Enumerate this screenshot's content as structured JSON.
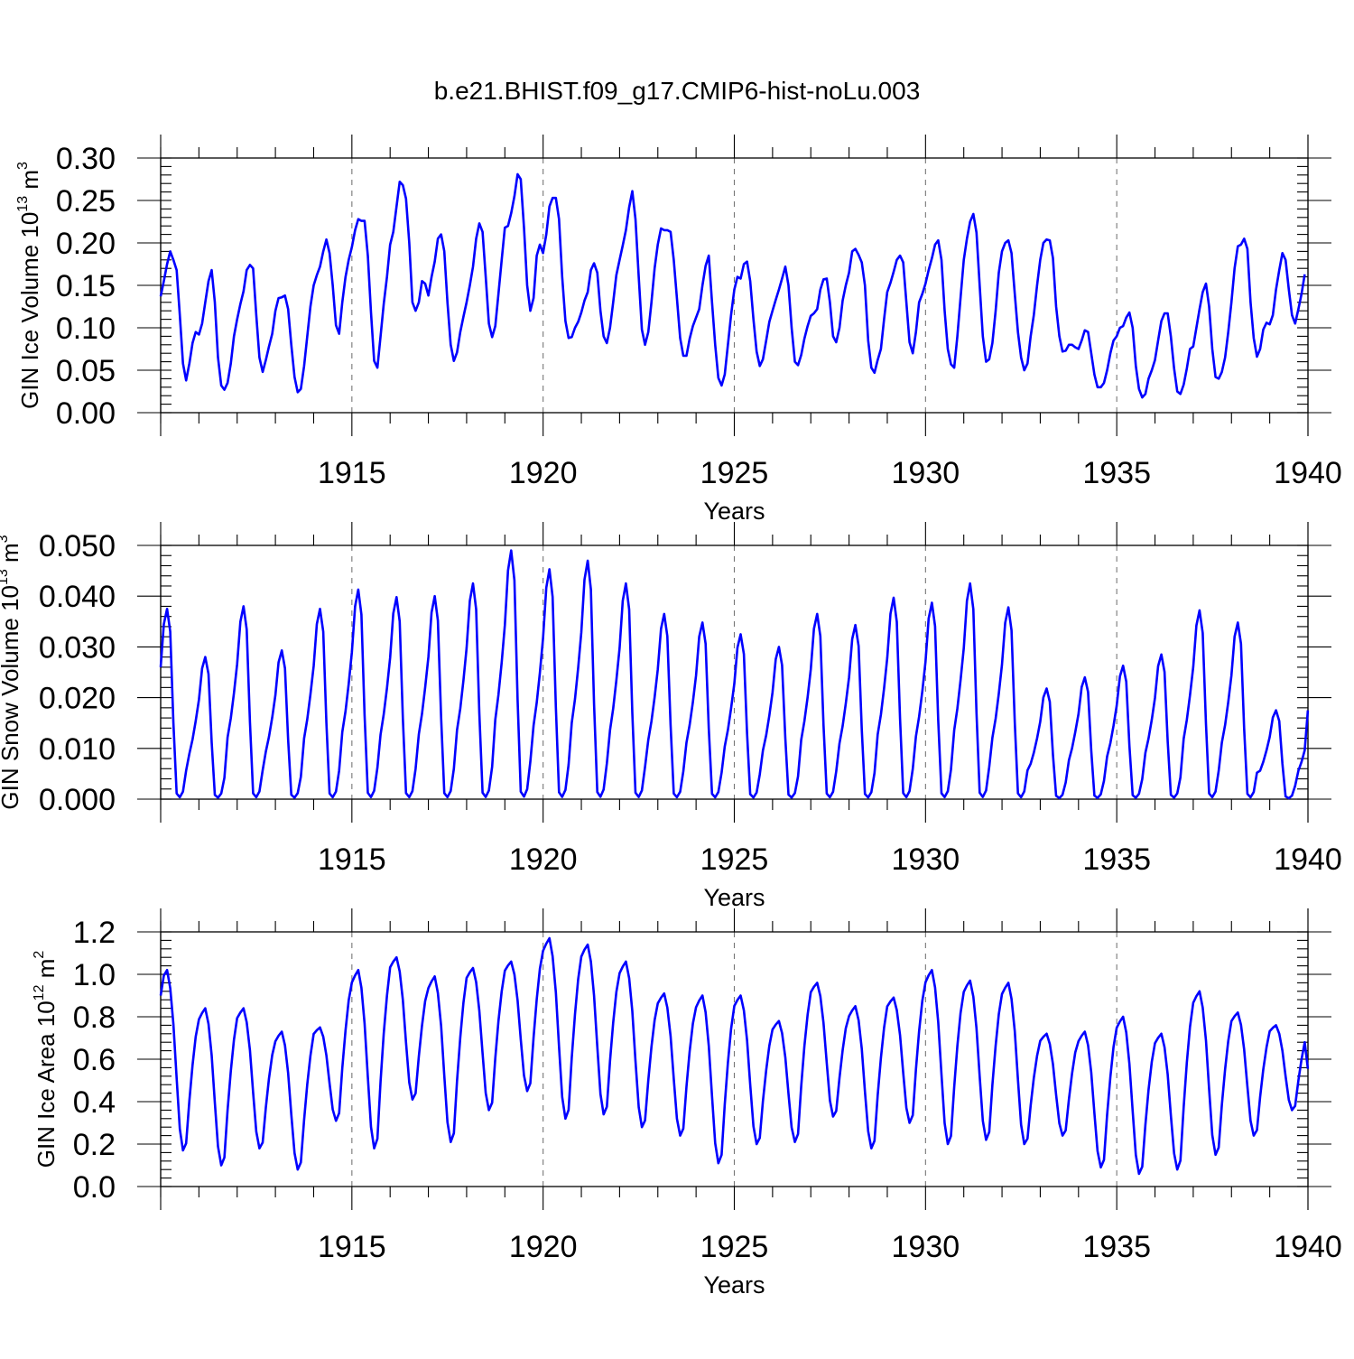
{
  "title": "b.e21.BHIST.f09_g17.CMIP6-hist-noLu.003",
  "colors": {
    "line": "#0000ff",
    "axis": "#000000",
    "grid": "#777777"
  },
  "chart_data": [
    {
      "type": "line",
      "title": "",
      "xlabel": "Years",
      "ylabel": {
        "prefix": "GIN Ice Volume 10",
        "sup1": "13",
        "mid": " m",
        "sup2": "3"
      },
      "xlim": [
        1910.0,
        1940.0
      ],
      "ylim": [
        0.0,
        0.3
      ],
      "xticks": [
        1915,
        1920,
        1925,
        1930,
        1935,
        1940
      ],
      "xtick_labels": [
        "1915",
        "1920",
        "1925",
        "1930",
        "1935",
        "1940"
      ],
      "yticks": [
        0.0,
        0.05,
        0.1,
        0.15,
        0.2,
        0.25,
        0.3
      ],
      "ytick_labels": [
        "0.00",
        "0.05",
        "0.10",
        "0.15",
        "0.20",
        "0.25",
        "0.30"
      ],
      "ygrid_minor": 0.01,
      "vlines": [
        1915,
        1920,
        1925,
        1930,
        1935
      ],
      "series": [
        {
          "name": "GIN Ice Volume",
          "x_start": 1910.0,
          "x_step": 0.08333,
          "values": [
            0.137,
            0.155,
            0.175,
            0.19,
            0.18,
            0.168,
            0.115,
            0.058,
            0.038,
            0.058,
            0.082,
            0.095,
            0.092,
            0.105,
            0.13,
            0.155,
            0.168,
            0.13,
            0.065,
            0.032,
            0.027,
            0.035,
            0.058,
            0.09,
            0.11,
            0.128,
            0.143,
            0.168,
            0.174,
            0.17,
            0.115,
            0.065,
            0.048,
            0.062,
            0.078,
            0.093,
            0.12,
            0.135,
            0.136,
            0.138,
            0.122,
            0.08,
            0.042,
            0.024,
            0.028,
            0.055,
            0.09,
            0.125,
            0.15,
            0.162,
            0.172,
            0.19,
            0.204,
            0.188,
            0.15,
            0.103,
            0.093,
            0.13,
            0.16,
            0.18,
            0.195,
            0.215,
            0.228,
            0.226,
            0.226,
            0.185,
            0.118,
            0.061,
            0.053,
            0.09,
            0.128,
            0.16,
            0.198,
            0.213,
            0.243,
            0.272,
            0.268,
            0.252,
            0.2,
            0.13,
            0.12,
            0.13,
            0.155,
            0.152,
            0.138,
            0.16,
            0.178,
            0.205,
            0.21,
            0.19,
            0.13,
            0.08,
            0.061,
            0.071,
            0.095,
            0.113,
            0.13,
            0.15,
            0.172,
            0.205,
            0.223,
            0.213,
            0.16,
            0.105,
            0.089,
            0.102,
            0.14,
            0.18,
            0.218,
            0.22,
            0.235,
            0.255,
            0.281,
            0.275,
            0.218,
            0.15,
            0.12,
            0.135,
            0.185,
            0.198,
            0.188,
            0.21,
            0.243,
            0.253,
            0.253,
            0.228,
            0.16,
            0.108,
            0.088,
            0.089,
            0.1,
            0.107,
            0.118,
            0.132,
            0.142,
            0.168,
            0.176,
            0.165,
            0.12,
            0.09,
            0.082,
            0.1,
            0.13,
            0.162,
            0.18,
            0.197,
            0.215,
            0.242,
            0.261,
            0.228,
            0.16,
            0.098,
            0.08,
            0.095,
            0.13,
            0.17,
            0.198,
            0.217,
            0.215,
            0.215,
            0.213,
            0.18,
            0.135,
            0.088,
            0.067,
            0.067,
            0.087,
            0.102,
            0.112,
            0.122,
            0.15,
            0.173,
            0.185,
            0.13,
            0.08,
            0.041,
            0.032,
            0.045,
            0.08,
            0.115,
            0.145,
            0.16,
            0.158,
            0.175,
            0.178,
            0.155,
            0.11,
            0.072,
            0.055,
            0.063,
            0.085,
            0.107,
            0.12,
            0.133,
            0.145,
            0.158,
            0.172,
            0.15,
            0.1,
            0.06,
            0.056,
            0.068,
            0.087,
            0.102,
            0.114,
            0.117,
            0.122,
            0.145,
            0.157,
            0.158,
            0.13,
            0.09,
            0.083,
            0.1,
            0.132,
            0.15,
            0.165,
            0.19,
            0.193,
            0.186,
            0.177,
            0.15,
            0.085,
            0.053,
            0.047,
            0.062,
            0.075,
            0.11,
            0.142,
            0.153,
            0.166,
            0.18,
            0.185,
            0.177,
            0.13,
            0.083,
            0.07,
            0.095,
            0.13,
            0.14,
            0.152,
            0.168,
            0.182,
            0.198,
            0.203,
            0.18,
            0.12,
            0.075,
            0.057,
            0.053,
            0.09,
            0.135,
            0.18,
            0.205,
            0.225,
            0.234,
            0.212,
            0.15,
            0.09,
            0.06,
            0.063,
            0.082,
            0.12,
            0.165,
            0.19,
            0.2,
            0.203,
            0.188,
            0.14,
            0.095,
            0.065,
            0.05,
            0.058,
            0.09,
            0.115,
            0.15,
            0.18,
            0.2,
            0.204,
            0.203,
            0.182,
            0.125,
            0.09,
            0.072,
            0.073,
            0.08,
            0.08,
            0.077,
            0.075,
            0.085,
            0.097,
            0.095,
            0.07,
            0.045,
            0.03,
            0.03,
            0.035,
            0.05,
            0.07,
            0.085,
            0.09,
            0.1,
            0.102,
            0.112,
            0.118,
            0.1,
            0.055,
            0.028,
            0.018,
            0.022,
            0.04,
            0.05,
            0.062,
            0.085,
            0.108,
            0.117,
            0.117,
            0.09,
            0.052,
            0.025,
            0.022,
            0.033,
            0.052,
            0.075,
            0.078,
            0.1,
            0.122,
            0.142,
            0.152,
            0.125,
            0.075,
            0.042,
            0.04,
            0.048,
            0.065,
            0.095,
            0.13,
            0.17,
            0.196,
            0.198,
            0.205,
            0.193,
            0.13,
            0.088,
            0.066,
            0.075,
            0.098,
            0.106,
            0.104,
            0.115,
            0.145,
            0.168,
            0.188,
            0.18,
            0.145,
            0.115,
            0.105,
            0.122,
            0.14,
            0.163
          ]
        }
      ]
    },
    {
      "type": "line",
      "title": "",
      "xlabel": "Years",
      "ylabel": {
        "prefix": "GIN Snow Volume 10",
        "sup1": "13",
        "mid": " m",
        "sup2": "3"
      },
      "xlim": [
        1910.0,
        1940.0
      ],
      "ylim": [
        0.0,
        0.05
      ],
      "xticks": [
        1915,
        1920,
        1925,
        1930,
        1935,
        1940
      ],
      "xtick_labels": [
        "1915",
        "1920",
        "1925",
        "1930",
        "1935",
        "1940"
      ],
      "yticks": [
        0.0,
        0.01,
        0.02,
        0.03,
        0.04,
        0.05
      ],
      "ytick_labels": [
        "0.000",
        "0.010",
        "0.020",
        "0.030",
        "0.040",
        "0.050"
      ],
      "ygrid_minor": 0.002,
      "vlines": [
        1915,
        1920,
        1925,
        1930,
        1935
      ],
      "series": [
        {
          "name": "GIN Snow Volume",
          "x_start": 1910.0,
          "x_step": 0.08333,
          "peaks": [
            0.0375,
            0.028,
            0.038,
            0.0293,
            0.0375,
            0.0413,
            0.0398,
            0.04,
            0.0425,
            0.049,
            0.0453,
            0.047,
            0.0425,
            0.0365,
            0.0348,
            0.0325,
            0.03,
            0.0365,
            0.0343,
            0.0397,
            0.0387,
            0.0425,
            0.0378,
            0.0218,
            0.024,
            0.0263,
            0.0285,
            0.0372,
            0.0348,
            0.0175
          ],
          "start_value": 0.026
        }
      ]
    },
    {
      "type": "line",
      "title": "",
      "xlabel": "Years",
      "ylabel": {
        "prefix": "GIN Ice Area 10",
        "sup1": "12",
        "mid": " m",
        "sup2": "2"
      },
      "xlim": [
        1910.0,
        1940.0
      ],
      "ylim": [
        0.0,
        1.2
      ],
      "xticks": [
        1915,
        1920,
        1925,
        1930,
        1935,
        1940
      ],
      "xtick_labels": [
        "1915",
        "1920",
        "1925",
        "1930",
        "1935",
        "1940"
      ],
      "yticks": [
        0.0,
        0.2,
        0.4,
        0.6,
        0.8,
        1.0,
        1.2
      ],
      "ytick_labels": [
        "0.0",
        "0.2",
        "0.4",
        "0.6",
        "0.8",
        "1.0",
        "1.2"
      ],
      "ygrid_minor": 0.04,
      "vlines": [
        1915,
        1920,
        1925,
        1930,
        1935
      ],
      "series": [
        {
          "name": "GIN Ice Area",
          "x_start": 1910.0,
          "x_step": 0.08333,
          "peaks": [
            1.02,
            0.84,
            0.84,
            0.73,
            0.75,
            1.02,
            1.08,
            0.99,
            1.03,
            1.06,
            1.17,
            1.14,
            1.06,
            0.91,
            0.9,
            0.9,
            0.78,
            0.96,
            0.85,
            0.89,
            1.02,
            0.97,
            0.96,
            0.72,
            0.73,
            0.8,
            0.72,
            0.92,
            0.82,
            0.76
          ],
          "troughs": [
            0.17,
            0.1,
            0.18,
            0.08,
            0.31,
            0.18,
            0.41,
            0.21,
            0.36,
            0.45,
            0.32,
            0.34,
            0.28,
            0.24,
            0.11,
            0.2,
            0.21,
            0.33,
            0.18,
            0.3,
            0.2,
            0.22,
            0.2,
            0.24,
            0.09,
            0.06,
            0.08,
            0.15,
            0.24,
            0.36
          ],
          "start_value": 0.9
        }
      ]
    }
  ]
}
